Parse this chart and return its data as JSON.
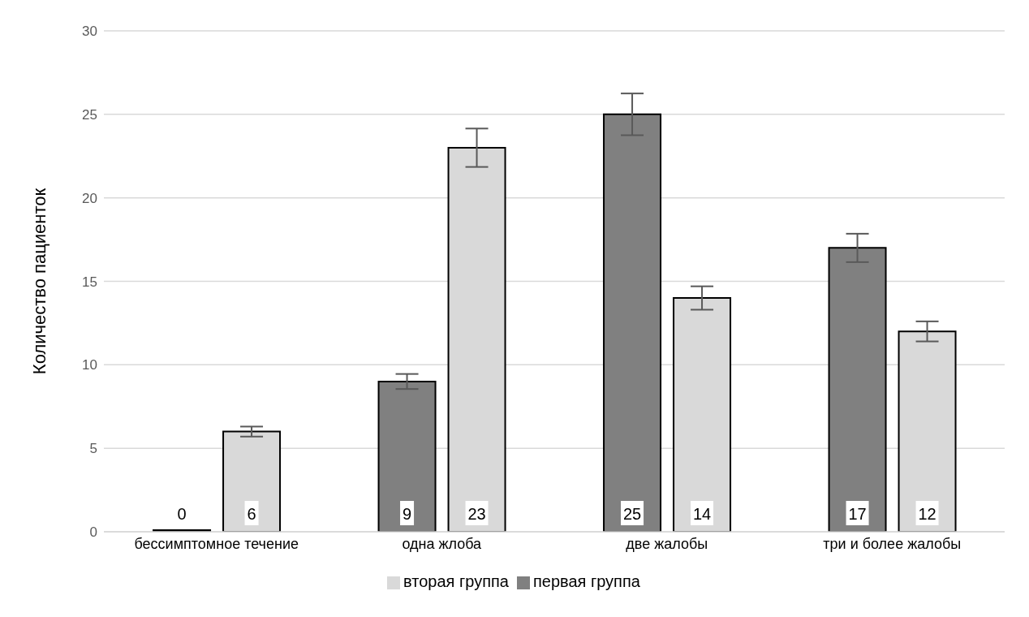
{
  "chart_data": {
    "type": "bar",
    "ylabel": "Количество пациенток",
    "categories": [
      "бессимптомное течение",
      "одна жлоба",
      "две жалобы",
      "три и более жалобы"
    ],
    "series": [
      {
        "name": "первая группа",
        "color": "#808080",
        "values": [
          0,
          9,
          25,
          17
        ],
        "errors": [
          null,
          0.45,
          1.25,
          0.85
        ]
      },
      {
        "name": "вторая группа",
        "color": "#d9d9d9",
        "values": [
          6,
          23,
          14,
          12
        ],
        "errors": [
          0.3,
          1.15,
          0.7,
          0.6
        ]
      }
    ],
    "ylim": [
      0,
      30
    ],
    "yticks": [
      0,
      5,
      10,
      15,
      20,
      25,
      30
    ],
    "grid": "y",
    "legend": "bottom",
    "data_labels": true
  }
}
